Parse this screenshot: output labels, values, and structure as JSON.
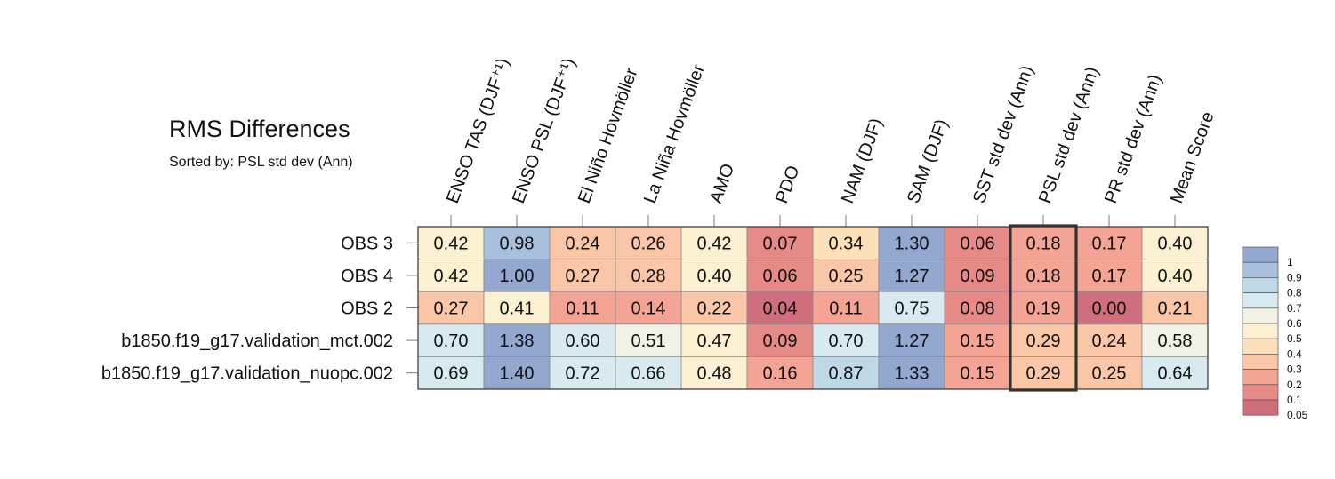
{
  "chart_data": {
    "type": "heatmap",
    "title": "RMS Differences",
    "subtitle": "Sorted by: PSL std dev (Ann)",
    "columns": [
      "ENSO TAS (DJF⁺¹)",
      "ENSO PSL (DJF⁺¹)",
      "El Niño Hovmöller",
      "La Niña Hovmöller",
      "AMO",
      "PDO",
      "NAM (DJF)",
      "SAM (DJF)",
      "SST std dev (Ann)",
      "PSL std dev (Ann)",
      "PR std dev (Ann)",
      "Mean Score"
    ],
    "rows": [
      "OBS 3",
      "OBS 4",
      "OBS 2",
      "b1850.f19_g17.validation_mct.002",
      "b1850.f19_g17.validation_nuopc.002"
    ],
    "values": [
      [
        "0.42",
        "0.98",
        "0.24",
        "0.26",
        "0.42",
        "0.07",
        "0.34",
        "1.30",
        "0.06",
        "0.18",
        "0.17",
        "0.40"
      ],
      [
        "0.42",
        "1.00",
        "0.27",
        "0.28",
        "0.40",
        "0.06",
        "0.25",
        "1.27",
        "0.09",
        "0.18",
        "0.17",
        "0.40"
      ],
      [
        "0.27",
        "0.41",
        "0.11",
        "0.14",
        "0.22",
        "0.04",
        "0.11",
        "0.75",
        "0.08",
        "0.19",
        "0.00",
        "0.21"
      ],
      [
        "0.70",
        "1.38",
        "0.60",
        "0.51",
        "0.47",
        "0.09",
        "0.70",
        "1.27",
        "0.15",
        "0.29",
        "0.24",
        "0.58"
      ],
      [
        "0.69",
        "1.40",
        "0.72",
        "0.66",
        "0.48",
        "0.16",
        "0.87",
        "1.33",
        "0.15",
        "0.29",
        "0.25",
        "0.64"
      ]
    ],
    "highlighted_column": "PSL std dev (Ann)",
    "colorbar": {
      "labels": [
        "1",
        "0.9",
        "0.8",
        "0.7",
        "0.6",
        "0.5",
        "0.4",
        "0.3",
        "0.2",
        "0.1",
        "0.05"
      ],
      "colors_top_to_bottom": [
        "#94a7cf",
        "#a9c0dc",
        "#bed8e6",
        "#d8eaf0",
        "#f0f2e6",
        "#fbf0d2",
        "#fde0b8",
        "#f9c6a8",
        "#f3a495",
        "#e68a88",
        "#cf6f7d"
      ]
    }
  }
}
